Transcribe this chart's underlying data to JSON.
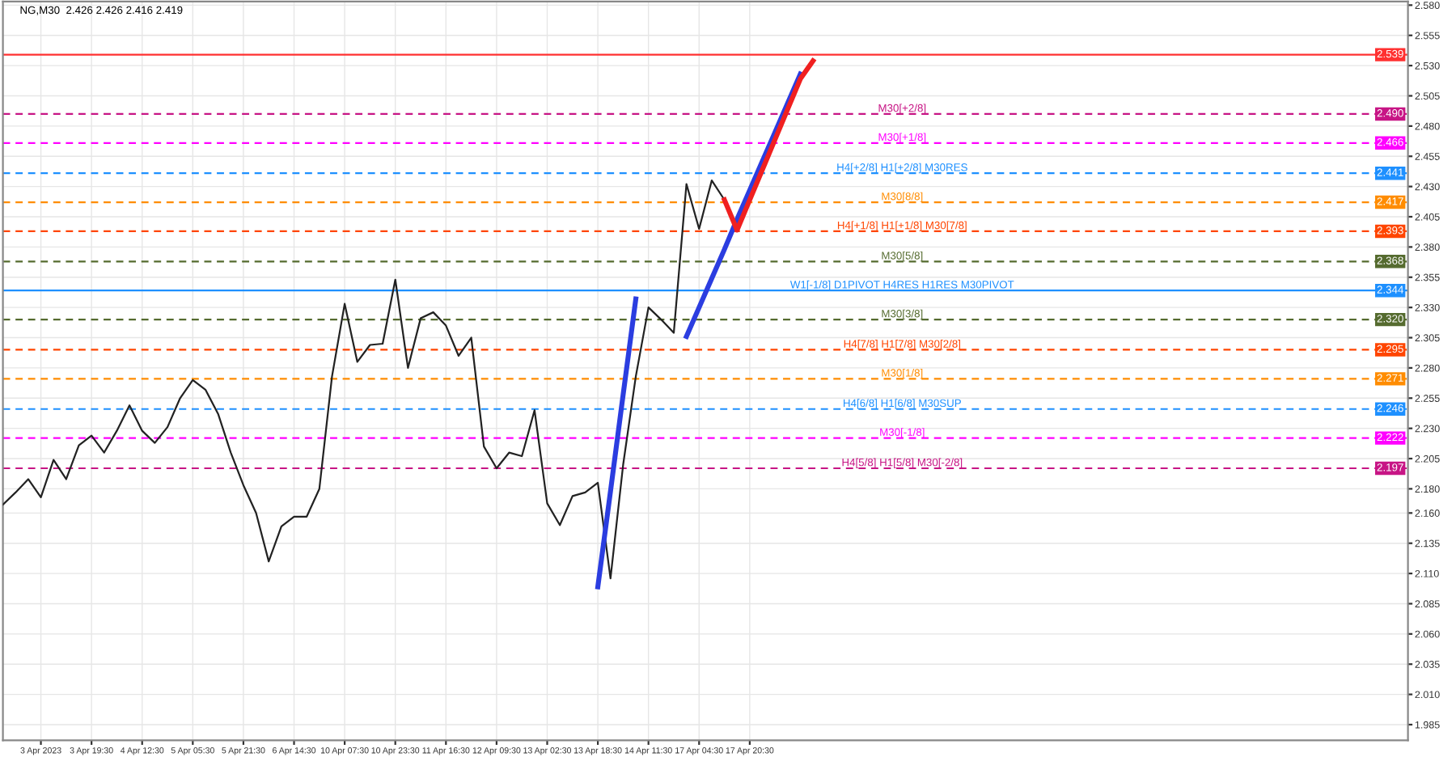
{
  "chart_data": {
    "type": "line",
    "title": "NG,M30  2.426 2.426 2.416 2.419",
    "categories": [
      null,
      null,
      null,
      "3 Apr 2023",
      null,
      null,
      null,
      "3 Apr 19:30",
      null,
      null,
      null,
      "4 Apr 12:30",
      null,
      null,
      null,
      "5 Apr 05:30",
      null,
      null,
      null,
      "5 Apr 21:30",
      null,
      null,
      null,
      "6 Apr 14:30",
      null,
      null,
      null,
      "10 Apr 07:30",
      null,
      null,
      null,
      "10 Apr 23:30",
      null,
      null,
      null,
      "11 Apr 16:30",
      null,
      null,
      null,
      "12 Apr 09:30",
      null,
      null,
      null,
      "13 Apr 02:30",
      null,
      null,
      null,
      "13 Apr 18:30",
      null,
      null,
      null,
      "14 Apr 11:30",
      null,
      null,
      null,
      "17 Apr 04:30",
      null,
      null,
      null,
      "17 Apr 20:30",
      null,
      null,
      null,
      null,
      null,
      null,
      null,
      null,
      null,
      null,
      null,
      null,
      null,
      null,
      null,
      null,
      null,
      null,
      null,
      null,
      null,
      null,
      null,
      null,
      null,
      null,
      null,
      null,
      null,
      null,
      null,
      null,
      null,
      null,
      null,
      null,
      null,
      null,
      null,
      null,
      null,
      null,
      null,
      null,
      null,
      null,
      null,
      null,
      null,
      null,
      null,
      null
    ],
    "ylim": [
      1.972,
      2.583
    ],
    "yticks": [
      1.985,
      {
        "value": 2.01,
        "label": "2.010"
      },
      2.035,
      {
        "value": 2.06,
        "label": "2.060"
      },
      2.085,
      {
        "value": 2.11,
        "label": "2.110"
      },
      2.135,
      {
        "value": 2.16,
        "label": "2.160"
      },
      {
        "value": 2.18,
        "label": "2.180"
      },
      2.205,
      {
        "value": 2.23,
        "label": "2.230"
      },
      2.255,
      {
        "value": 2.28,
        "label": "2.280"
      },
      2.305,
      {
        "value": 2.33,
        "label": "2.330"
      },
      2.355,
      {
        "value": 2.38,
        "label": "2.380"
      },
      2.405,
      {
        "value": 2.43,
        "label": "2.430"
      },
      2.455,
      {
        "value": 2.48,
        "label": "2.480"
      },
      2.505,
      {
        "value": 2.53,
        "label": "2.530"
      },
      2.555,
      {
        "value": 2.58,
        "label": "2.580"
      }
    ],
    "grid": true,
    "annotations": [
      {
        "text": "2.539",
        "y": 2.539
      },
      {
        "text": "2.490",
        "y": 2.49
      },
      {
        "text": "2.466",
        "y": 2.466
      },
      {
        "text": "2.441",
        "y": 2.441
      },
      {
        "text": "2.417",
        "y": 2.417
      },
      {
        "text": "2.393",
        "y": 2.393
      },
      {
        "text": "2.368",
        "y": 2.368
      },
      {
        "text": "2.344",
        "y": 2.344
      },
      {
        "text": "2.320",
        "y": 2.32
      },
      {
        "text": "2.295",
        "y": 2.295
      },
      {
        "text": "2.271",
        "y": 2.271
      },
      {
        "text": "2.246",
        "y": 2.246
      },
      {
        "text": "2.222",
        "y": 2.222
      },
      {
        "text": "2.197",
        "y": 2.197
      }
    ],
    "series": [
      {
        "color": "#222222",
        "values": [
          2.167,
          2.177,
          2.188,
          2.173,
          2.204,
          2.188,
          2.216,
          2.224,
          2.21,
          2.228,
          2.249,
          2.228,
          2.218,
          2.231,
          2.255,
          2.27,
          2.262,
          2.242,
          2.21,
          2.183,
          2.16,
          2.12,
          2.149,
          2.157,
          2.157,
          2.18,
          2.273,
          2.333,
          2.285,
          2.299,
          2.3,
          2.353,
          2.28,
          2.321,
          2.326,
          2.315,
          2.29,
          2.305,
          2.215,
          2.197,
          2.21,
          2.207,
          2.245,
          2.168,
          2.15,
          2.174,
          2.177,
          2.185,
          2.106,
          2.2,
          2.273,
          2.33,
          2.32,
          2.309,
          2.432,
          2.395,
          2.435,
          2.419,
          null,
          null,
          null,
          null,
          null,
          null,
          null,
          null,
          null,
          null,
          null,
          null,
          null,
          null,
          null,
          null,
          null,
          null,
          null,
          null,
          null,
          null,
          null,
          null,
          null,
          null,
          null,
          null,
          null,
          null,
          null,
          null,
          null,
          null,
          null,
          null,
          null,
          null,
          null,
          null,
          null,
          null,
          null,
          null,
          null,
          null,
          null,
          null,
          null,
          null,
          null,
          null,
          null,
          null
        ]
      },
      {
        "color": "#2b3de0",
        "values": [
          null,
          null,
          null,
          null,
          null,
          null,
          null,
          null,
          null,
          null,
          null,
          null,
          null,
          null,
          null,
          null,
          null,
          null,
          null,
          null,
          null,
          null,
          null,
          null,
          null,
          null,
          null,
          null,
          null,
          null,
          null,
          null,
          null,
          null,
          null,
          null,
          null,
          null,
          null,
          null,
          null,
          null,
          null,
          null,
          null,
          null,
          null,
          2.099,
          2.178,
          2.258,
          2.337,
          null,
          null,
          null,
          null,
          null,
          null,
          null,
          null,
          null,
          null,
          null,
          null,
          null,
          null,
          null,
          null,
          null,
          null,
          null,
          null,
          null,
          null,
          null,
          null,
          null,
          null,
          null,
          null,
          null,
          null,
          null,
          null,
          null,
          null,
          null,
          null,
          null,
          null,
          null,
          null,
          null,
          null,
          null,
          null,
          null,
          null,
          null,
          null,
          null,
          null,
          null,
          null,
          null,
          null,
          null,
          null,
          null,
          null,
          null,
          null,
          null
        ]
      },
      {
        "color": "#2b3de0",
        "values": [
          null,
          null,
          null,
          null,
          null,
          null,
          null,
          null,
          null,
          null,
          null,
          null,
          null,
          null,
          null,
          null,
          null,
          null,
          null,
          null,
          null,
          null,
          null,
          null,
          null,
          null,
          null,
          null,
          null,
          null,
          null,
          null,
          null,
          null,
          null,
          null,
          null,
          null,
          null,
          null,
          null,
          null,
          null,
          null,
          null,
          null,
          null,
          null,
          null,
          null,
          null,
          null,
          null,
          null,
          2.306,
          2.33,
          2.354,
          2.378,
          2.403,
          2.427,
          2.451,
          2.475,
          2.499,
          2.523,
          null,
          null,
          null,
          null,
          null,
          null,
          null,
          null,
          null,
          null,
          null,
          null,
          null,
          null,
          null,
          null,
          null,
          null,
          null,
          null,
          null,
          null,
          null,
          null,
          null,
          null,
          null,
          null,
          null,
          null,
          null,
          null,
          null,
          null,
          null,
          null,
          null,
          null,
          null,
          null,
          null,
          null,
          null,
          null,
          null,
          null,
          null,
          null
        ]
      },
      {
        "color": "#f02020",
        "values": [
          null,
          null,
          null,
          null,
          null,
          null,
          null,
          null,
          null,
          null,
          null,
          null,
          null,
          null,
          null,
          null,
          null,
          null,
          null,
          null,
          null,
          null,
          null,
          null,
          null,
          null,
          null,
          null,
          null,
          null,
          null,
          null,
          null,
          null,
          null,
          null,
          null,
          null,
          null,
          null,
          null,
          null,
          null,
          null,
          null,
          null,
          null,
          null,
          null,
          null,
          null,
          null,
          null,
          null,
          null,
          null,
          null,
          2.419,
          2.394,
          2.419,
          2.444,
          2.469,
          2.494,
          2.519,
          2.534,
          null,
          null,
          null,
          null,
          null,
          null,
          null,
          null,
          null,
          null,
          null,
          null,
          null,
          null,
          null,
          null,
          null,
          null,
          null,
          null,
          null,
          null,
          null,
          null,
          null,
          null,
          null,
          null,
          null,
          null,
          null,
          null,
          null,
          null,
          null,
          null,
          null,
          null,
          null,
          null,
          null,
          null,
          null,
          null,
          null,
          null,
          null
        ]
      }
    ],
    "ref_lines": [
      {
        "axis": "y",
        "value": 2.539,
        "label": null,
        "color": "#ff3030",
        "line_style": "solid"
      },
      {
        "axis": "y",
        "value": 2.49,
        "label": "M30[+2/8]",
        "color": "#c71585",
        "line_style": "dashed"
      },
      {
        "axis": "y",
        "value": 2.466,
        "label": "M30[+1/8]",
        "color": "#ff00ff",
        "line_style": "dashed"
      },
      {
        "axis": "y",
        "value": 2.441,
        "label": "H4[+2/8] H1[+2/8] M30RES",
        "color": "#1e90ff",
        "line_style": "dashed"
      },
      {
        "axis": "y",
        "value": 2.417,
        "label": "M30[8/8]",
        "color": "#ff8c00",
        "line_style": "dashed"
      },
      {
        "axis": "y",
        "value": 2.393,
        "label": "H4[+1/8] H1[+1/8] M30[7/8]",
        "color": "#ff4500",
        "line_style": "dashed"
      },
      {
        "axis": "y",
        "value": 2.368,
        "label": "M30[5/8]",
        "color": "#556b2f",
        "line_style": "dashed"
      },
      {
        "axis": "y",
        "value": 2.344,
        "label": "W1[-1/8] D1PIVOT H4RES H1RES M30PIVOT",
        "color": "#1e90ff",
        "line_style": "solid"
      },
      {
        "axis": "y",
        "value": 2.32,
        "label": "M30[3/8]",
        "color": "#556b2f",
        "line_style": "dashed"
      },
      {
        "axis": "y",
        "value": 2.295,
        "label": "H4[7/8] H1[7/8] M30[2/8]",
        "color": "#ff4500",
        "line_style": "dashed"
      },
      {
        "axis": "y",
        "value": 2.271,
        "label": "M30[1/8]",
        "color": "#ff8c00",
        "line_style": "dashed"
      },
      {
        "axis": "y",
        "value": 2.246,
        "label": "H4[6/8] H1[6/8] M30SUP",
        "color": "#1e90ff",
        "line_style": "dashed"
      },
      {
        "axis": "y",
        "value": 2.222,
        "label": "M30[-1/8]",
        "color": "#ff00ff",
        "line_style": "dashed"
      },
      {
        "axis": "y",
        "value": 2.197,
        "label": "H4[5/8] H1[5/8] M30[-2/8]",
        "color": "#c71585",
        "line_style": "dashed"
      }
    ]
  }
}
